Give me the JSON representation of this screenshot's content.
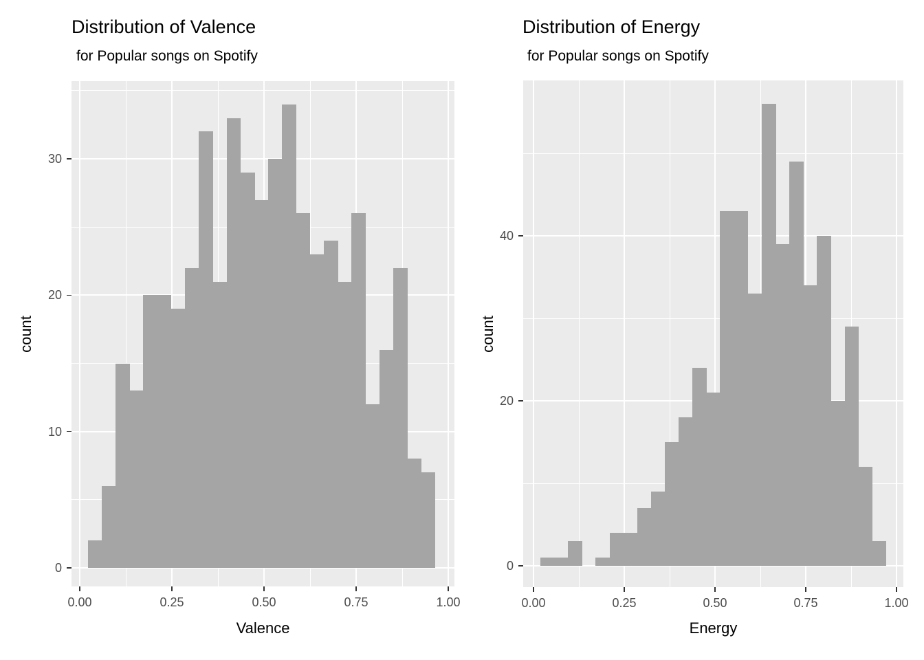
{
  "chart_data": [
    {
      "type": "bar",
      "subtype": "histogram",
      "title": "Distribution of Valence",
      "subtitle": "for Popular songs on Spotify",
      "xlabel": "Valence",
      "ylabel": "count",
      "bin_start": 0.0215,
      "bin_width": 0.0377,
      "counts": [
        2,
        6,
        15,
        13,
        20,
        20,
        19,
        22,
        32,
        21,
        33,
        29,
        27,
        30,
        34,
        26,
        23,
        24,
        21,
        26,
        12,
        16,
        22,
        8,
        7
      ],
      "x_tick_values": [
        0,
        0.25,
        0.5,
        0.75,
        1.0
      ],
      "x_tick_labels": [
        "0.00",
        "0.25",
        "0.50",
        "0.75",
        "1.00"
      ],
      "x_minor_values": [
        0.125,
        0.375,
        0.625,
        0.875
      ],
      "y_tick_values": [
        0,
        10,
        20,
        30
      ],
      "y_tick_labels": [
        "0",
        "10",
        "20",
        "30"
      ],
      "y_minor_values": [
        5,
        15,
        25,
        35
      ],
      "xlim": [
        -0.026,
        1.013
      ],
      "ylim": [
        0,
        35.7
      ],
      "grid": "on",
      "legend": "none",
      "bar_color": "#a5a5a5",
      "panel_color": "#ebebeb",
      "grid_color": "#ffffff",
      "tick_text_color": "#4d4d4d"
    },
    {
      "type": "bar",
      "subtype": "histogram",
      "title": "Distribution of Energy",
      "subtitle": "for Popular songs on Spotify",
      "xlabel": "Energy",
      "ylabel": "count",
      "bin_start": 0.0189,
      "bin_width": 0.0381,
      "counts": [
        1,
        1,
        3,
        0,
        1,
        4,
        4,
        7,
        9,
        15,
        18,
        24,
        21,
        43,
        43,
        33,
        56,
        39,
        49,
        34,
        40,
        20,
        29,
        12,
        3
      ],
      "x_tick_values": [
        0,
        0.25,
        0.5,
        0.75,
        1.0
      ],
      "x_tick_labels": [
        "0.00",
        "0.25",
        "0.50",
        "0.75",
        "1.00"
      ],
      "x_minor_values": [
        0.125,
        0.375,
        0.625,
        0.875
      ],
      "y_tick_values": [
        0,
        20,
        40
      ],
      "y_tick_labels": [
        "0",
        "20",
        "40"
      ],
      "y_minor_values": [
        10,
        30,
        50
      ],
      "xlim": [
        -0.028,
        1.019
      ],
      "ylim": [
        0,
        58.8
      ],
      "grid": "on",
      "legend": "none",
      "bar_color": "#a5a5a5",
      "panel_color": "#ebebeb",
      "grid_color": "#ffffff",
      "tick_text_color": "#4d4d4d"
    }
  ]
}
